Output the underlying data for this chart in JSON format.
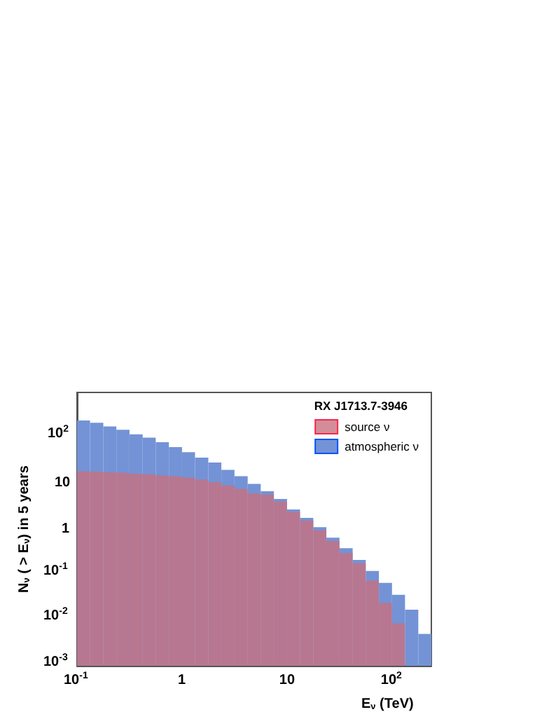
{
  "chart_data": {
    "type": "histogram",
    "xlabel": "E$_{ν}$ (TeV)",
    "ylabel": "N$_{ν}$ ( > E$_{ν}$) in 5 years",
    "legend_title": "RX J1713.7-3946",
    "legend": "top right",
    "log": "xy",
    "grid": false,
    "bins": [
      0.1,
      0.133,
      0.178,
      0.237,
      0.316,
      0.422,
      0.562,
      0.75,
      1,
      1.33,
      1.78,
      2.37,
      3.16,
      4.22,
      5.62,
      7.5,
      10,
      13.3,
      17.8,
      23.7,
      31.6,
      42.2,
      56.2,
      75,
      100,
      133,
      178,
      237
    ],
    "series": [
      {
        "name": "source ν",
        "color": "#c87080",
        "values": [
          18.6,
          18.2,
          17.8,
          17.3,
          16.4,
          16,
          15.2,
          14.5,
          13.5,
          12.3,
          10.7,
          9.1,
          7.7,
          6.1,
          5.7,
          4,
          2.4,
          1.55,
          0.95,
          0.55,
          0.3,
          0.18,
          0.074,
          0.024,
          0.0085,
          null,
          null
        ]
      },
      {
        "name": "atmospheric ν",
        "color": "#7393d6",
        "values": [
          243,
          217,
          180,
          152,
          120,
          102,
          81,
          63,
          49,
          37,
          29,
          20,
          14.5,
          9.8,
          6.8,
          4.6,
          2.7,
          1.76,
          1.1,
          0.65,
          0.38,
          0.21,
          0.12,
          0.066,
          0.036,
          0.017,
          0.005
        ]
      }
    ],
    "xlim": [
      0.1,
      237
    ],
    "ylim": [
      0.001,
      1000
    ],
    "xticks": [
      {
        "value": 0.1,
        "label": "10$^{-1}$"
      },
      1,
      10,
      {
        "value": 100,
        "label": "10$^{2}$"
      }
    ],
    "yticks": [
      {
        "value": 0.001,
        "label": "10$^{-3}$"
      },
      {
        "value": 0.01,
        "label": "10$^{-2}$"
      },
      {
        "value": 0.1,
        "label": "10$^{-1}$"
      },
      1,
      10,
      {
        "value": 100,
        "label": "10$^{2}$"
      }
    ]
  }
}
